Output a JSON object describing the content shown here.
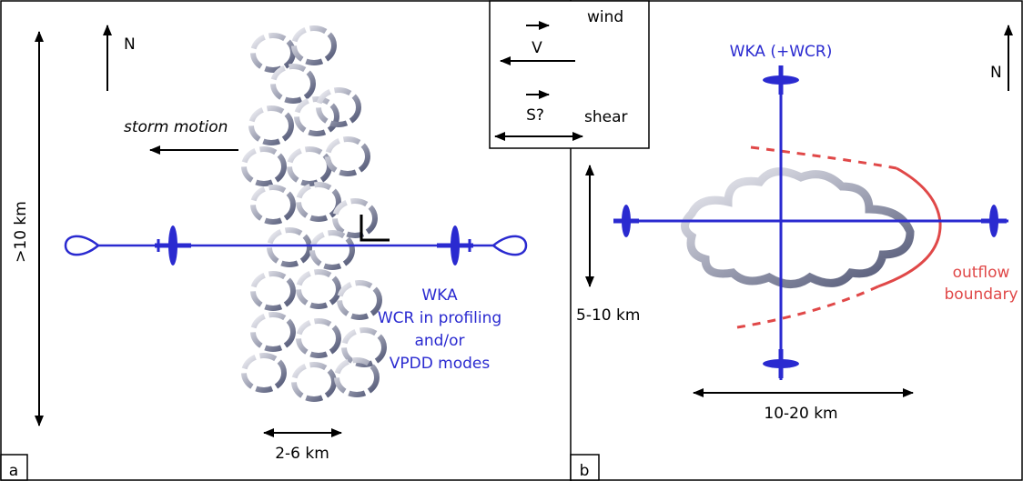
{
  "panel_a": {
    "label": "a",
    "north": "N",
    "storm_motion": "storm motion",
    "vertical_scale": ">10 km",
    "horizontal_scale": "2-6 km",
    "aircraft_label": [
      "WKA",
      "WCR in profiling",
      "and/or",
      "VPDD modes"
    ]
  },
  "legend": {
    "wind_symbol": "V",
    "wind": "wind",
    "shear_symbol": "S?",
    "shear": "shear"
  },
  "panel_b": {
    "label": "b",
    "title": "WKA (+WCR)",
    "north": "N",
    "vertical_scale": "5-10 km",
    "horizontal_scale": "10-20 km",
    "outflow_label": [
      "outflow",
      "boundary"
    ]
  }
}
